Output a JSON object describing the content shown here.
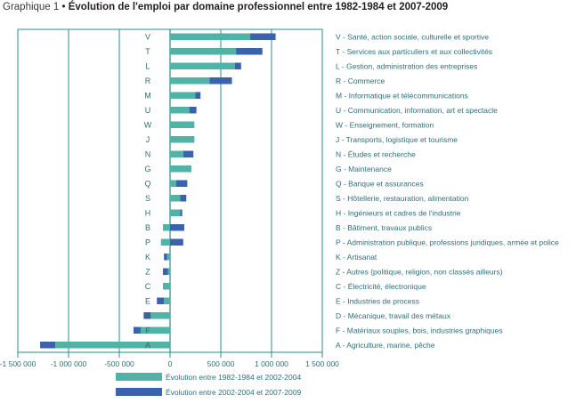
{
  "header": {
    "prefix": "Graphique 1",
    "bullet": "•",
    "title": "Évolution de l'emploi par domaine professionnel entre 1982-1984 et 2007-2009"
  },
  "colors": {
    "series1": "#4fb3a6",
    "series2": "#3a62ad",
    "frame": "#2a8c8c",
    "text": "#2f6e7a"
  },
  "chart_data": {
    "type": "bar",
    "orientation": "horizontal",
    "stacked": true,
    "title": "Évolution de l'emploi par domaine professionnel entre 1982-1984 et 2007-2009",
    "xlim": [
      -1500000,
      1500000
    ],
    "ticks": [
      -1500000,
      -1000000,
      -500000,
      0,
      500000,
      1000000,
      1500000
    ],
    "tick_labels": [
      "-1 500 000",
      "-1 000 000",
      "-500 000",
      "0",
      "500 000",
      "1 000 000",
      "1 500 000"
    ],
    "grid": "vertical",
    "legend_position": "bottom",
    "categories": [
      "V",
      "T",
      "L",
      "R",
      "M",
      "U",
      "W",
      "J",
      "N",
      "G",
      "Q",
      "S",
      "H",
      "B",
      "P",
      "K",
      "Z",
      "C",
      "E",
      "D",
      "F",
      "A"
    ],
    "category_descriptions": [
      "V - Santé, action sociale, culturelle et sportive",
      "T - Services aux particuliers et aux collectivités",
      "L - Gestion, administration des entreprises",
      "R - Commerce",
      "M - Informatique et télécommunications",
      "U - Communication, information, art et spectacle",
      "W - Enseignement, formation",
      "J - Transports, logistique et tourisme",
      "N - Études et recherche",
      "G - Maintenance",
      "Q - Banque et assurances",
      "S - Hôtellerie, restauration, alimentation",
      "H - Ingénieurs et cadres de l'industrie",
      "B - Bâtiment, travaux publics",
      "P - Administration publique, professions juridiques, armée et police",
      "K - Artisanat",
      "Z - Autres (politique, religion, non classés ailleurs)",
      "C - Électricité, électronique",
      "E - Industries de process",
      "D - Mécanique, travail des métaux",
      "F - Matériaux souples, bois, industries graphiques",
      "A - Agriculture, marine, pêche"
    ],
    "series": [
      {
        "name": "Évolution entre 1982-1984 et 2002-2004",
        "values": [
          790000,
          650000,
          640000,
          390000,
          250000,
          190000,
          240000,
          240000,
          130000,
          210000,
          60000,
          100000,
          100000,
          -70000,
          -90000,
          -30000,
          -20000,
          -70000,
          -60000,
          -190000,
          -290000,
          -1130000
        ]
      },
      {
        "name": "Évolution entre 2002-2004 et 2007-2009",
        "values": [
          250000,
          260000,
          60000,
          220000,
          50000,
          70000,
          0,
          0,
          100000,
          0,
          110000,
          60000,
          20000,
          140000,
          130000,
          -30000,
          -50000,
          0,
          -70000,
          -70000,
          -70000,
          -150000
        ]
      }
    ]
  }
}
